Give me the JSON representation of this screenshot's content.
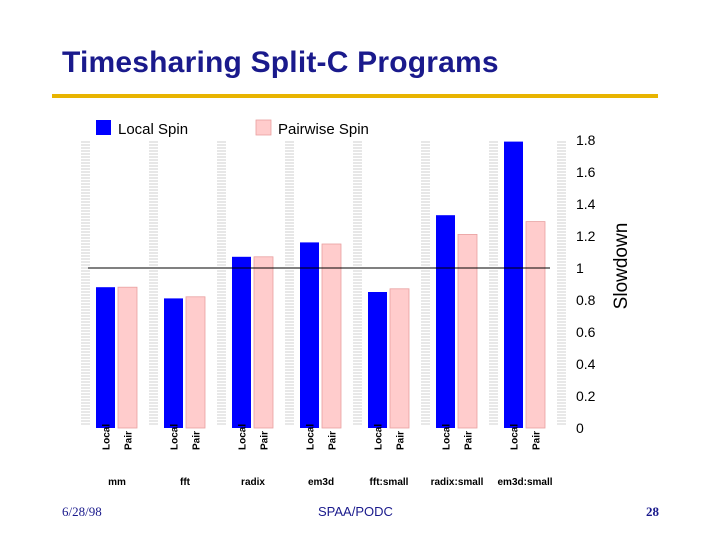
{
  "slide": {
    "title": "Timesharing Split-C Programs",
    "footer_date": "6/28/98",
    "footer_center": "SPAA/PODC",
    "page_number": "28"
  },
  "colors": {
    "local": "#0000ff",
    "pair": "#ffcccc",
    "pair_stroke": "#e8a0a0",
    "title": "#1a1a8c",
    "rule": "#e8b400"
  },
  "chart_data": {
    "type": "bar",
    "title": "",
    "xlabel": "",
    "ylabel": "Slowdown",
    "ylim": [
      0,
      1.8
    ],
    "yticks": [
      0,
      0.2,
      0.4,
      0.6,
      0.8,
      1,
      1.2,
      1.4,
      1.6,
      1.8
    ],
    "reference_line": 1,
    "legend_position": "top-left",
    "categories": [
      "mm",
      "fft",
      "radix",
      "em3d",
      "fft:small",
      "radix:small",
      "em3d:small"
    ],
    "bar_labels": [
      "Local",
      "Pair"
    ],
    "series": [
      {
        "name": "Local Spin",
        "values": [
          0.88,
          0.81,
          1.07,
          1.16,
          0.85,
          1.33,
          1.79
        ]
      },
      {
        "name": "Pairwise Spin",
        "values": [
          0.88,
          0.82,
          1.07,
          1.15,
          0.87,
          1.21,
          1.29
        ]
      }
    ]
  }
}
